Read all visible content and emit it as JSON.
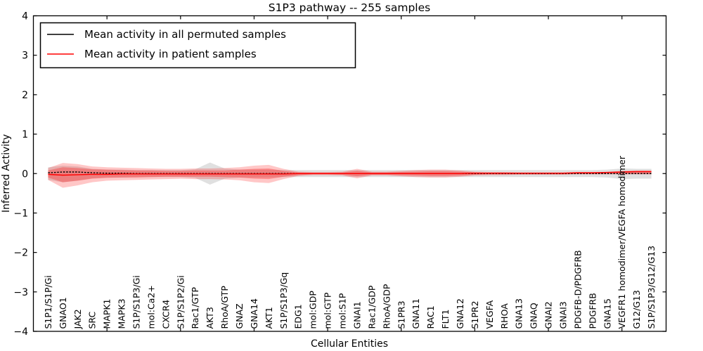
{
  "figure": {
    "title": "S1P3 pathway -- 255 samples",
    "xlabel": "Cellular Entities",
    "ylabel": "Inferred Activity"
  },
  "legend": {
    "items": [
      {
        "label": "Mean activity in all permuted samples",
        "color": "#000000"
      },
      {
        "label": "Mean activity in patient samples",
        "color": "#ff0000"
      }
    ]
  },
  "chart_data": {
    "type": "line",
    "title": "S1P3 pathway -- 255 samples",
    "xlabel": "Cellular Entities",
    "ylabel": "Inferred Activity",
    "ylim": [
      -4,
      4
    ],
    "yticks": [
      -4,
      -3,
      -2,
      -1,
      0,
      1,
      2,
      3,
      4
    ],
    "xlim": [
      0,
      43
    ],
    "xticks_major": [
      5,
      10,
      15,
      20,
      25,
      30,
      35,
      40
    ],
    "grid": false,
    "legend_position": "upper left",
    "categories": [
      "S1P1/S1P/Gi",
      "GNAO1",
      "JAK2",
      "SRC",
      "MAPK1",
      "MAPK3",
      "S1P/S1P3/Gi",
      "mol:Ca2+",
      "CXCR4",
      "S1P/S1P2/Gi",
      "Rac1/GTP",
      "AKT3",
      "RhoA/GTP",
      "GNAZ",
      "GNA14",
      "AKT1",
      "S1P/S1P3/Gq",
      "EDG1",
      "mol:GDP",
      "mol:GTP",
      "mol:S1P",
      "GNAI1",
      "Rac1/GDP",
      "RhoA/GDP",
      "S1PR3",
      "GNA11",
      "RAC1",
      "FLT1",
      "GNA12",
      "S1PR2",
      "VEGFA",
      "RHOA",
      "GNA13",
      "GNAQ",
      "GNAI2",
      "GNAI3",
      "PDGFB-D/PDGFRB",
      "PDGFRB",
      "GNA15",
      "VEGFR1 homodimer/VEGFA homodimer",
      "G12/G13",
      "S1P/S1P3/G12/G13"
    ],
    "series": [
      {
        "name": "Mean activity in all permuted samples",
        "color": "#000000",
        "style": "dotted",
        "values": [
          0.02,
          0.04,
          0.04,
          0.02,
          0.01,
          0.01,
          0,
          0,
          0,
          0,
          0,
          0,
          0,
          0,
          0,
          0,
          0,
          0,
          0,
          0,
          0,
          0,
          0,
          0,
          0,
          0,
          0,
          0,
          0,
          0,
          0,
          0,
          0,
          0,
          0,
          0,
          0,
          0,
          0,
          0,
          0,
          0
        ]
      },
      {
        "name": "Mean activity in patient samples",
        "color": "#ff0000",
        "style": "solid",
        "values": [
          -0.02,
          -0.04,
          -0.03,
          -0.02,
          -0.02,
          -0.01,
          -0.01,
          -0.01,
          -0.01,
          -0.01,
          -0.01,
          -0.01,
          -0.01,
          -0.01,
          -0.01,
          -0.01,
          -0.01,
          0,
          0,
          0,
          0,
          0,
          0,
          0,
          0,
          0,
          0,
          0,
          0,
          0.01,
          0.01,
          0.01,
          0.01,
          0.01,
          0.01,
          0.01,
          0.02,
          0.02,
          0.03,
          0.04,
          0.05,
          0.05
        ]
      }
    ],
    "bands": [
      {
        "name": "permuted-samples-range",
        "color": "rgba(0,0,0,0.12)",
        "upper": [
          0.16,
          0.2,
          0.18,
          0.12,
          0.1,
          0.1,
          0.09,
          0.09,
          0.09,
          0.09,
          0.11,
          0.28,
          0.13,
          0.1,
          0.1,
          0.1,
          0.09,
          0.09,
          0.09,
          0.09,
          0.09,
          0.09,
          0.09,
          0.09,
          0.09,
          0.09,
          0.09,
          0.09,
          0.09,
          0.09,
          0.09,
          0.09,
          0.09,
          0.09,
          0.09,
          0.09,
          0.09,
          0.09,
          0.1,
          0.13,
          0.12,
          0.12
        ],
        "lower": [
          -0.16,
          -0.22,
          -0.18,
          -0.12,
          -0.1,
          -0.1,
          -0.09,
          -0.09,
          -0.09,
          -0.09,
          -0.11,
          -0.28,
          -0.13,
          -0.1,
          -0.1,
          -0.1,
          -0.09,
          -0.09,
          -0.09,
          -0.09,
          -0.09,
          -0.09,
          -0.09,
          -0.09,
          -0.09,
          -0.09,
          -0.09,
          -0.09,
          -0.09,
          -0.09,
          -0.09,
          -0.09,
          -0.09,
          -0.09,
          -0.09,
          -0.09,
          -0.09,
          -0.09,
          -0.1,
          -0.14,
          -0.13,
          -0.13
        ]
      },
      {
        "name": "patient-samples-range-outer",
        "color": "rgba(255,0,0,0.22)",
        "upper": [
          0.14,
          0.27,
          0.24,
          0.18,
          0.16,
          0.15,
          0.14,
          0.13,
          0.12,
          0.12,
          0.13,
          0.13,
          0.14,
          0.16,
          0.2,
          0.22,
          0.12,
          0.05,
          0.04,
          0.04,
          0.05,
          0.12,
          0.05,
          0.05,
          0.07,
          0.09,
          0.1,
          0.1,
          0.08,
          0.05,
          0.04,
          0.04,
          0.03,
          0.03,
          0.03,
          0.03,
          0.04,
          0.04,
          0.04,
          0.07,
          0.08,
          0.08
        ],
        "lower": [
          -0.16,
          -0.36,
          -0.3,
          -0.22,
          -0.18,
          -0.17,
          -0.16,
          -0.15,
          -0.14,
          -0.13,
          -0.14,
          -0.14,
          -0.15,
          -0.17,
          -0.22,
          -0.24,
          -0.14,
          -0.06,
          -0.04,
          -0.04,
          -0.05,
          -0.12,
          -0.05,
          -0.05,
          -0.07,
          -0.09,
          -0.1,
          -0.1,
          -0.08,
          -0.05,
          -0.04,
          -0.04,
          -0.03,
          -0.03,
          -0.03,
          -0.03,
          -0.02,
          -0.02,
          -0.02,
          -0.02,
          -0.02,
          -0.02
        ]
      },
      {
        "name": "patient-samples-range-inner",
        "color": "rgba(255,0,0,0.28)",
        "upper": [
          0.08,
          0.16,
          0.14,
          0.11,
          0.1,
          0.09,
          0.08,
          0.08,
          0.07,
          0.07,
          0.08,
          0.08,
          0.08,
          0.1,
          0.12,
          0.13,
          0.07,
          0.03,
          0.02,
          0.02,
          0.03,
          0.07,
          0.03,
          0.03,
          0.04,
          0.05,
          0.06,
          0.06,
          0.05,
          0.03,
          0.02,
          0.02,
          0.02,
          0.02,
          0.02,
          0.02,
          0.02,
          0.02,
          0.02,
          0.05,
          0.05,
          0.05
        ],
        "lower": [
          -0.1,
          -0.22,
          -0.18,
          -0.13,
          -0.11,
          -0.1,
          -0.1,
          -0.09,
          -0.08,
          -0.08,
          -0.08,
          -0.08,
          -0.09,
          -0.1,
          -0.13,
          -0.14,
          -0.08,
          -0.04,
          -0.02,
          -0.02,
          -0.03,
          -0.07,
          -0.03,
          -0.03,
          -0.04,
          -0.05,
          -0.06,
          -0.06,
          -0.05,
          -0.03,
          -0.02,
          -0.02,
          -0.02,
          -0.02,
          -0.02,
          -0.02,
          -0.01,
          -0.01,
          -0.01,
          -0.01,
          -0.01,
          -0.01
        ]
      }
    ]
  }
}
